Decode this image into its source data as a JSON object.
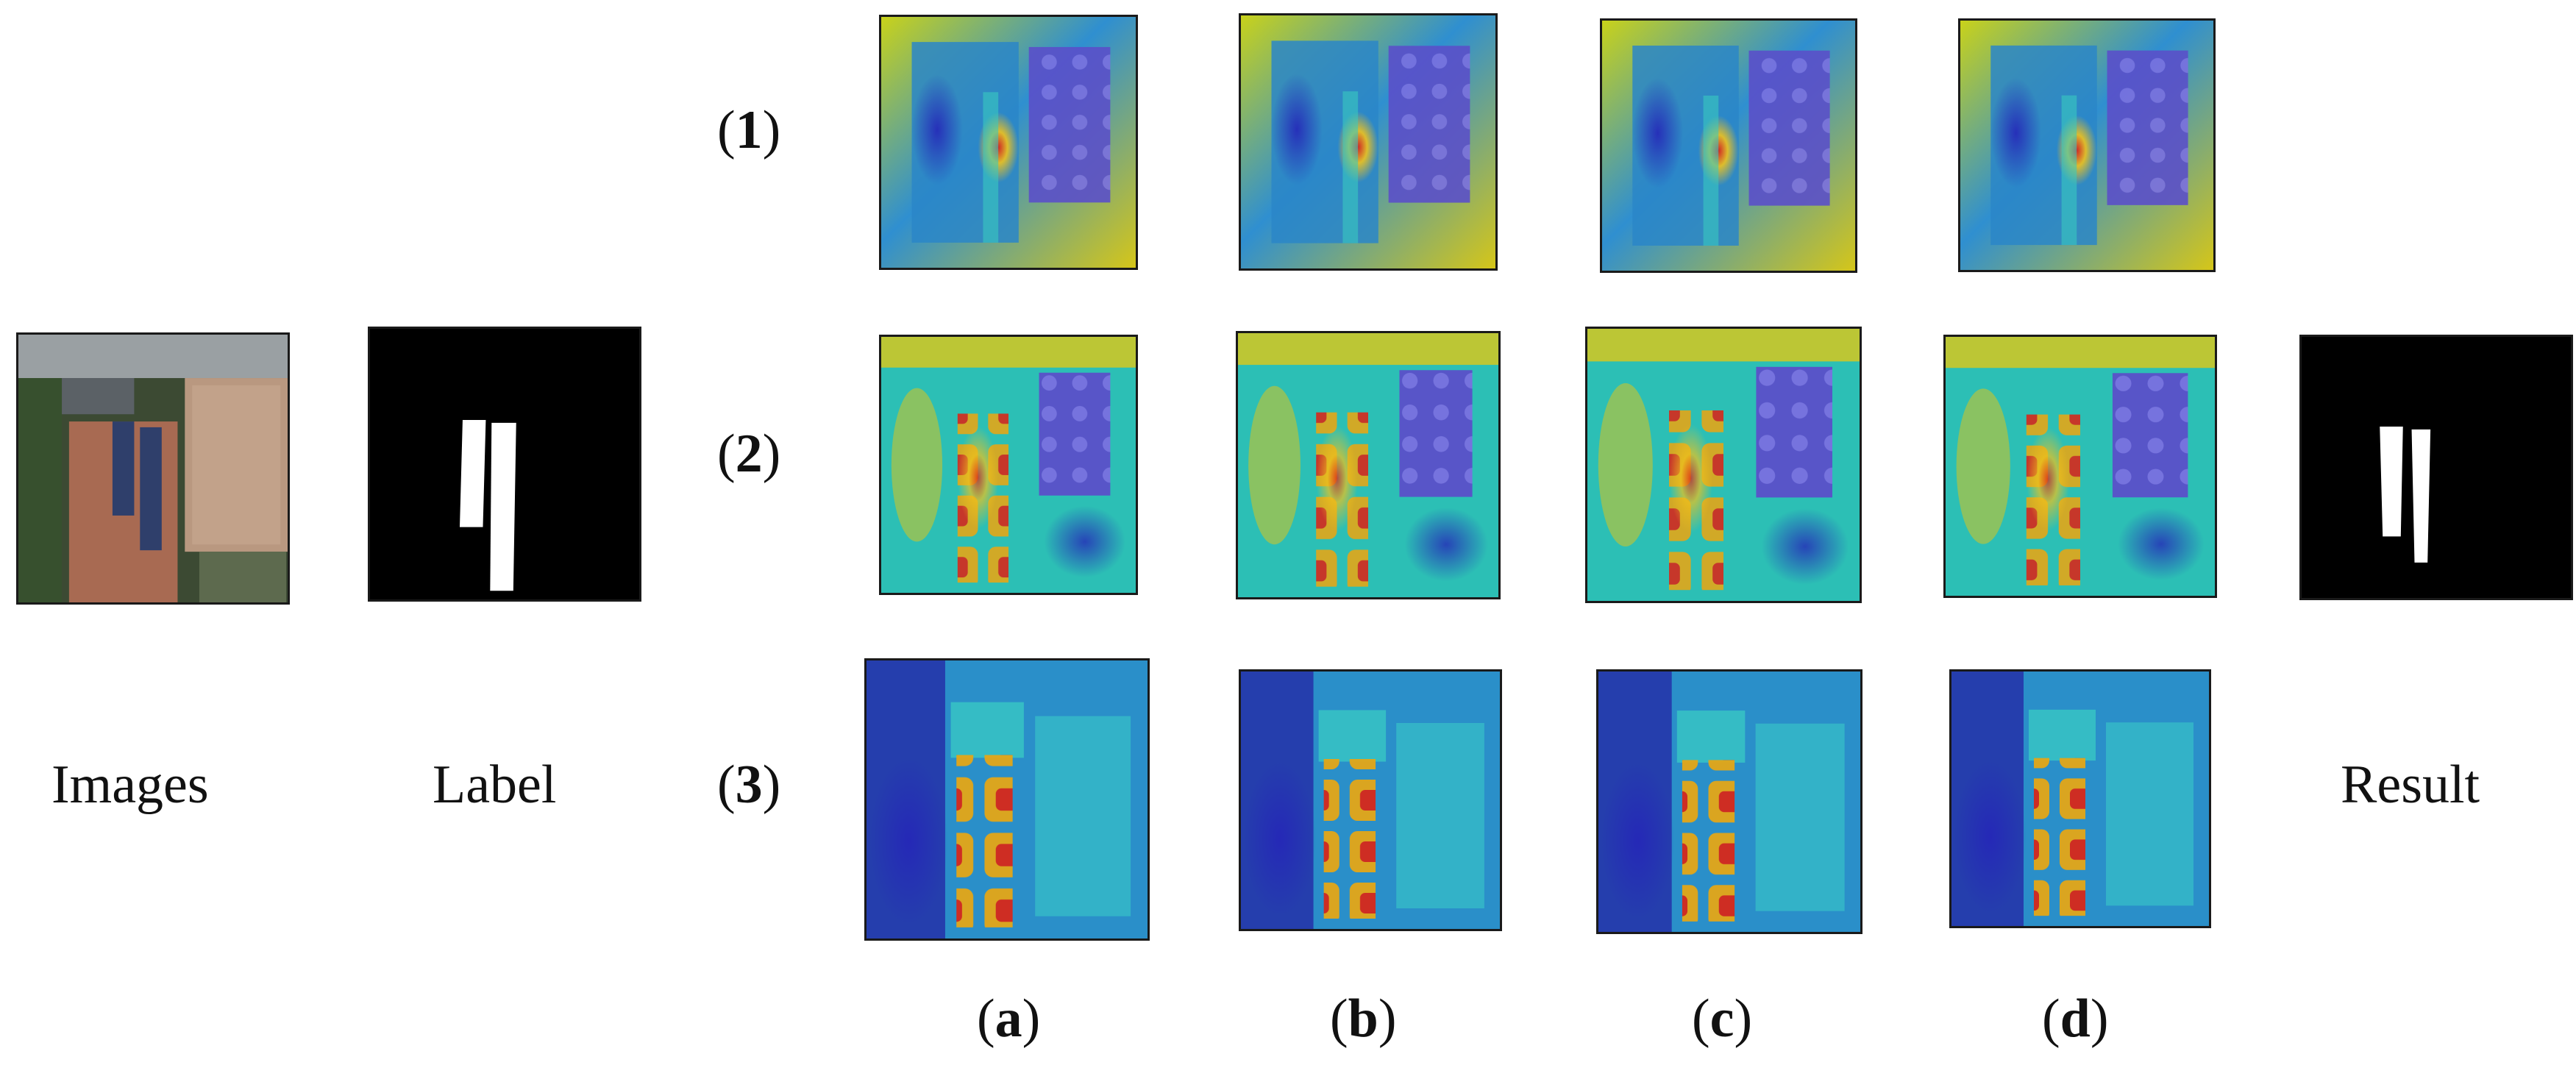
{
  "figure": {
    "left_labels": {
      "images": "Images",
      "label": "Label",
      "result": "Result"
    },
    "rows": [
      {
        "open": "(",
        "num": "1",
        "close": ")"
      },
      {
        "open": "(",
        "num": "2",
        "close": ")"
      },
      {
        "open": "(",
        "num": "3",
        "close": ")"
      }
    ],
    "cols": [
      {
        "open": "(",
        "letter": "a",
        "close": ")"
      },
      {
        "open": "(",
        "letter": "b",
        "close": ")"
      },
      {
        "open": "(",
        "letter": "c",
        "close": ")"
      },
      {
        "open": "(",
        "letter": "d",
        "close": ")"
      }
    ]
  }
}
